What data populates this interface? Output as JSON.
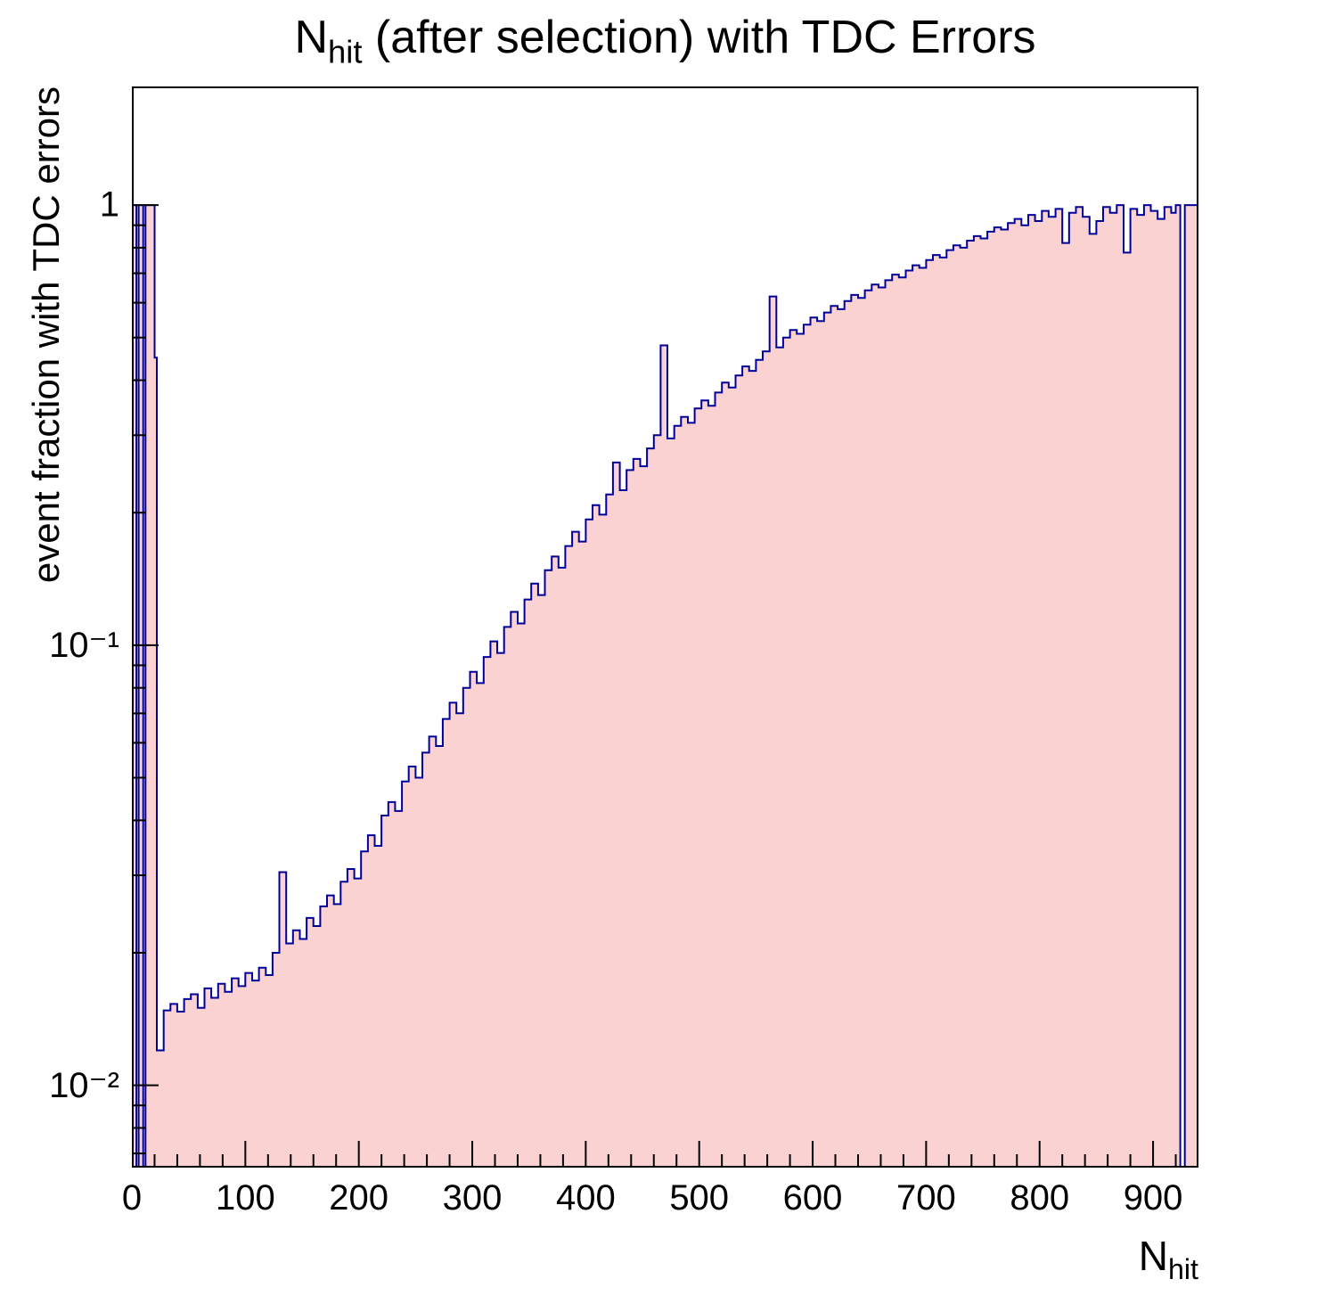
{
  "title": {
    "pre": "N",
    "sub": "hit",
    "post": " (after selection) with TDC Errors"
  },
  "y_axis": {
    "label": "event fraction with TDC errors",
    "ticks": [
      {
        "v": 1,
        "t": "1"
      },
      {
        "v": 0.1,
        "t": "10⁻¹"
      },
      {
        "v": 0.01,
        "t": "10⁻²"
      }
    ]
  },
  "x_axis": {
    "label_pre": "N",
    "label_sub": "hit",
    "ticks": [
      0,
      100,
      200,
      300,
      400,
      500,
      600,
      700,
      800,
      900
    ]
  },
  "chart_data": {
    "type": "histogram",
    "title": "N_hit (after selection) with TDC Errors",
    "xlabel": "N_hit",
    "ylabel": "event fraction with TDC errors",
    "yscale": "log",
    "xlim": [
      0,
      940
    ],
    "ylim": [
      0.0065,
      1.86
    ],
    "grid": false,
    "fill_color": "#fbd2d2",
    "line_color": "#000099",
    "bins": [
      [
        0,
        1
      ],
      [
        4,
        0.004
      ],
      [
        6,
        1
      ],
      [
        10,
        0.004
      ],
      [
        12,
        1
      ],
      [
        16,
        1
      ],
      [
        20,
        0.45
      ],
      [
        22,
        0.012
      ],
      [
        28,
        0.0148
      ],
      [
        34,
        0.0153
      ],
      [
        40,
        0.0147
      ],
      [
        46,
        0.0157
      ],
      [
        52,
        0.0161
      ],
      [
        58,
        0.015
      ],
      [
        64,
        0.0166
      ],
      [
        70,
        0.0158
      ],
      [
        76,
        0.017
      ],
      [
        82,
        0.0163
      ],
      [
        88,
        0.0175
      ],
      [
        94,
        0.0168
      ],
      [
        100,
        0.018
      ],
      [
        106,
        0.0173
      ],
      [
        112,
        0.0185
      ],
      [
        118,
        0.0178
      ],
      [
        124,
        0.02
      ],
      [
        130,
        0.0305
      ],
      [
        136,
        0.021
      ],
      [
        142,
        0.0225
      ],
      [
        148,
        0.0215
      ],
      [
        154,
        0.024
      ],
      [
        160,
        0.023
      ],
      [
        166,
        0.0255
      ],
      [
        172,
        0.027
      ],
      [
        178,
        0.0258
      ],
      [
        184,
        0.029
      ],
      [
        190,
        0.031
      ],
      [
        196,
        0.0295
      ],
      [
        202,
        0.034
      ],
      [
        208,
        0.037
      ],
      [
        214,
        0.035
      ],
      [
        220,
        0.041
      ],
      [
        226,
        0.044
      ],
      [
        232,
        0.042
      ],
      [
        238,
        0.049
      ],
      [
        244,
        0.053
      ],
      [
        250,
        0.05
      ],
      [
        256,
        0.057
      ],
      [
        262,
        0.062
      ],
      [
        268,
        0.059
      ],
      [
        274,
        0.068
      ],
      [
        280,
        0.074
      ],
      [
        286,
        0.07
      ],
      [
        292,
        0.08
      ],
      [
        298,
        0.087
      ],
      [
        304,
        0.082
      ],
      [
        310,
        0.094
      ],
      [
        316,
        0.102
      ],
      [
        322,
        0.096
      ],
      [
        328,
        0.11
      ],
      [
        334,
        0.119
      ],
      [
        340,
        0.112
      ],
      [
        346,
        0.127
      ],
      [
        352,
        0.138
      ],
      [
        358,
        0.13
      ],
      [
        364,
        0.148
      ],
      [
        370,
        0.159
      ],
      [
        376,
        0.15
      ],
      [
        382,
        0.168
      ],
      [
        388,
        0.181
      ],
      [
        394,
        0.172
      ],
      [
        400,
        0.193
      ],
      [
        406,
        0.208
      ],
      [
        412,
        0.198
      ],
      [
        418,
        0.22
      ],
      [
        424,
        0.26
      ],
      [
        430,
        0.225
      ],
      [
        436,
        0.25
      ],
      [
        442,
        0.265
      ],
      [
        448,
        0.255
      ],
      [
        454,
        0.28
      ],
      [
        460,
        0.3
      ],
      [
        466,
        0.48
      ],
      [
        472,
        0.295
      ],
      [
        478,
        0.315
      ],
      [
        484,
        0.33
      ],
      [
        490,
        0.32
      ],
      [
        496,
        0.345
      ],
      [
        502,
        0.36
      ],
      [
        508,
        0.35
      ],
      [
        514,
        0.375
      ],
      [
        520,
        0.395
      ],
      [
        526,
        0.385
      ],
      [
        532,
        0.41
      ],
      [
        538,
        0.43
      ],
      [
        544,
        0.42
      ],
      [
        550,
        0.445
      ],
      [
        556,
        0.465
      ],
      [
        562,
        0.62
      ],
      [
        568,
        0.475
      ],
      [
        574,
        0.5
      ],
      [
        580,
        0.52
      ],
      [
        586,
        0.51
      ],
      [
        592,
        0.535
      ],
      [
        598,
        0.555
      ],
      [
        604,
        0.545
      ],
      [
        610,
        0.57
      ],
      [
        616,
        0.59
      ],
      [
        622,
        0.58
      ],
      [
        628,
        0.605
      ],
      [
        634,
        0.625
      ],
      [
        640,
        0.615
      ],
      [
        646,
        0.64
      ],
      [
        652,
        0.66
      ],
      [
        658,
        0.65
      ],
      [
        664,
        0.675
      ],
      [
        670,
        0.695
      ],
      [
        676,
        0.685
      ],
      [
        682,
        0.71
      ],
      [
        688,
        0.73
      ],
      [
        694,
        0.72
      ],
      [
        700,
        0.75
      ],
      [
        706,
        0.77
      ],
      [
        712,
        0.76
      ],
      [
        718,
        0.79
      ],
      [
        724,
        0.81
      ],
      [
        730,
        0.8
      ],
      [
        736,
        0.83
      ],
      [
        742,
        0.85
      ],
      [
        748,
        0.84
      ],
      [
        754,
        0.87
      ],
      [
        760,
        0.89
      ],
      [
        766,
        0.88
      ],
      [
        772,
        0.91
      ],
      [
        778,
        0.93
      ],
      [
        784,
        0.9
      ],
      [
        790,
        0.95
      ],
      [
        796,
        0.92
      ],
      [
        802,
        0.97
      ],
      [
        808,
        0.94
      ],
      [
        814,
        0.98
      ],
      [
        820,
        0.82
      ],
      [
        826,
        0.96
      ],
      [
        832,
        0.99
      ],
      [
        838,
        0.94
      ],
      [
        844,
        0.86
      ],
      [
        850,
        0.92
      ],
      [
        856,
        0.99
      ],
      [
        862,
        0.96
      ],
      [
        868,
        1.0
      ],
      [
        874,
        0.78
      ],
      [
        880,
        0.98
      ],
      [
        886,
        0.95
      ],
      [
        892,
        1.0
      ],
      [
        898,
        0.97
      ],
      [
        904,
        0.93
      ],
      [
        910,
        0.99
      ],
      [
        916,
        0.96
      ],
      [
        920,
        1.0
      ],
      [
        924,
        0.004
      ],
      [
        928,
        1.0
      ],
      [
        934,
        1.0
      ]
    ]
  }
}
